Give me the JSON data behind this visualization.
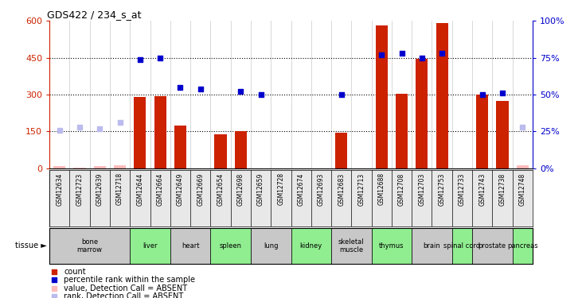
{
  "title": "GDS422 / 234_s_at",
  "samples": [
    "GSM12634",
    "GSM12723",
    "GSM12639",
    "GSM12718",
    "GSM12644",
    "GSM12664",
    "GSM12649",
    "GSM12669",
    "GSM12654",
    "GSM12698",
    "GSM12659",
    "GSM12728",
    "GSM12674",
    "GSM12693",
    "GSM12683",
    "GSM12713",
    "GSM12688",
    "GSM12708",
    "GSM12703",
    "GSM12753",
    "GSM12733",
    "GSM12743",
    "GSM12738",
    "GSM12748"
  ],
  "tissue_groups": [
    {
      "name": "bone\nmarrow",
      "start": 0,
      "end": 4,
      "color": "#c8c8c8"
    },
    {
      "name": "liver",
      "start": 4,
      "end": 6,
      "color": "#90ee90"
    },
    {
      "name": "heart",
      "start": 6,
      "end": 8,
      "color": "#c8c8c8"
    },
    {
      "name": "spleen",
      "start": 8,
      "end": 10,
      "color": "#90ee90"
    },
    {
      "name": "lung",
      "start": 10,
      "end": 12,
      "color": "#c8c8c8"
    },
    {
      "name": "kidney",
      "start": 12,
      "end": 14,
      "color": "#90ee90"
    },
    {
      "name": "skeletal\nmuscle",
      "start": 14,
      "end": 16,
      "color": "#c8c8c8"
    },
    {
      "name": "thymus",
      "start": 16,
      "end": 18,
      "color": "#90ee90"
    },
    {
      "name": "brain",
      "start": 18,
      "end": 20,
      "color": "#c8c8c8"
    },
    {
      "name": "spinal cord",
      "start": 20,
      "end": 21,
      "color": "#90ee90"
    },
    {
      "name": "prostate",
      "start": 21,
      "end": 23,
      "color": "#c8c8c8"
    },
    {
      "name": "pancreas",
      "start": 23,
      "end": 24,
      "color": "#90ee90"
    }
  ],
  "count_present": [
    null,
    null,
    null,
    null,
    290,
    295,
    175,
    null,
    140,
    150,
    null,
    null,
    null,
    null,
    145,
    null,
    580,
    305,
    445,
    590,
    null,
    300,
    275,
    null
  ],
  "count_absent": [
    8,
    2,
    10,
    12,
    null,
    null,
    null,
    null,
    null,
    null,
    null,
    null,
    null,
    null,
    null,
    null,
    null,
    null,
    null,
    null,
    null,
    null,
    null,
    12
  ],
  "rank_present": [
    null,
    null,
    null,
    null,
    74,
    75,
    55,
    54,
    null,
    52,
    50,
    null,
    null,
    null,
    50,
    null,
    77,
    78,
    75,
    78,
    null,
    50,
    51,
    null
  ],
  "rank_absent": [
    26,
    28,
    27,
    31,
    null,
    null,
    null,
    null,
    null,
    null,
    null,
    null,
    null,
    null,
    null,
    null,
    null,
    null,
    null,
    null,
    null,
    null,
    null,
    28
  ],
  "ylim_left": [
    0,
    600
  ],
  "ylim_right": [
    0,
    100
  ],
  "yticks_left": [
    0,
    150,
    300,
    450,
    600
  ],
  "yticks_right": [
    0,
    25,
    50,
    75,
    100
  ],
  "bar_color": "#cc2200",
  "rank_color": "#0000cc",
  "absent_bar_color": "#ffbbbb",
  "absent_rank_color": "#bbbbee",
  "grid_color": "black"
}
